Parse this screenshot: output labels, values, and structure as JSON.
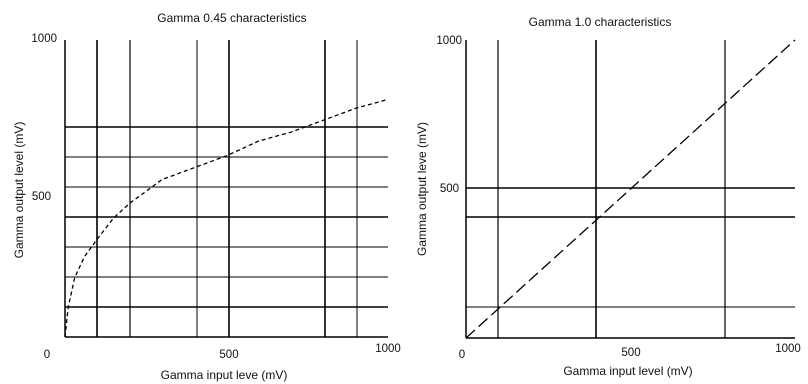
{
  "chart_data": [
    {
      "type": "line",
      "title": "Gamma 0.45 characteristics",
      "xlabel": "Gamma input leve (mV)",
      "ylabel": "Gamma output level (mV)",
      "xlim": [
        0,
        1000
      ],
      "ylim": [
        0,
        1000
      ],
      "x_tick_labels": [
        "0",
        "500",
        "1000"
      ],
      "y_tick_labels": [
        "1000",
        "500"
      ],
      "grid": true,
      "series": [
        {
          "name": "",
          "x": [
            0,
            10,
            30,
            60,
            100,
            150,
            200,
            250,
            300,
            400,
            500,
            600,
            700,
            800,
            900,
            1000
          ],
          "y": [
            0,
            100,
            200,
            270,
            330,
            400,
            450,
            490,
            530,
            570,
            610,
            660,
            690,
            730,
            770,
            800
          ]
        }
      ]
    },
    {
      "type": "line",
      "title": "Gamma 1.0 characteristics",
      "xlabel": "Gamma input level (mV)",
      "ylabel": "Gamma output leve (mV)",
      "xlim": [
        0,
        1000
      ],
      "ylim": [
        0,
        1000
      ],
      "x_tick_labels": [
        "0",
        "500",
        "1000"
      ],
      "y_tick_labels": [
        "1000",
        "500"
      ],
      "grid": true,
      "series": [
        {
          "name": "",
          "x": [
            0,
            1000
          ],
          "y": [
            0,
            1000
          ]
        }
      ]
    }
  ]
}
